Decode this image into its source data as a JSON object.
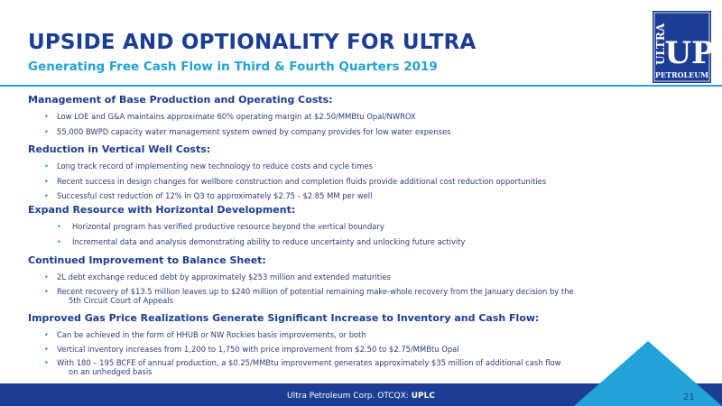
{
  "header": {
    "title": "UPSIDE AND OPTIONALITY FOR ULTRA",
    "subtitle": "Generating Free Cash Flow in Third & Fourth Quarters 2019"
  },
  "logo": {
    "vertical_text": "ULTRA",
    "big_text": "UP",
    "bottom_text": "PETROLEUM"
  },
  "sections": [
    {
      "heading": "Management of Base Production and Operating Costs:",
      "bullets": [
        "Low LOE and G&A maintains approximate 60% operating margin at $2.50/MMBtu Opal/NWROX",
        "55,000 BWPD capacity water management system owned by company provides for low water expenses"
      ]
    },
    {
      "heading": "Reduction in Vertical Well Costs:",
      "bullets": [
        "Long track record of implementing new technology to reduce costs and cycle times",
        "Recent success in design changes for wellbore construction and completion fluids provide additional cost reduction opportunities",
        "Successful cost reduction of 12% in Q3 to approximately $2.75 - $2.85 MM per well"
      ]
    },
    {
      "heading": "Expand Resource with Horizontal Development:",
      "bullets": [
        "Horizontal program has verified productive resource beyond the vertical boundary",
        "Incremental data and analysis demonstrating ability to reduce uncertainty and unlocking future activity"
      ]
    },
    {
      "heading": "Continued Improvement to Balance Sheet:",
      "bullets": [
        "2L debt exchange reduced debt by approximately $253 million and extended maturities",
        "Recent recovery of $13.5 million leaves up to $240 million of potential remaining make-whole recovery from the January decision by the",
        "5th Circuit Court of Appeals"
      ]
    },
    {
      "heading": "Improved Gas Price Realizations Generate Significant Increase to Inventory and Cash Flow:",
      "bullets": [
        "Can be achieved in the form of HHUB or NW Rockies basis improvements, or both",
        "Vertical inventory increases from 1,200 to 1,750 with price improvement from $2.50 to $2.75/MMBtu Opal",
        "With 180 – 195 BCFE of annual production, a $0.25/MMBtu improvement generates approximately $35 million of additional cash flow",
        "on an unhedged basis"
      ]
    }
  ],
  "footer": {
    "company": "Ultra Petroleum Corp. OTCQX: ",
    "ticker": "UPLC",
    "page_number": "21"
  },
  "colors": {
    "navy": "#1b3d93",
    "light_blue": "#22a3d8"
  }
}
